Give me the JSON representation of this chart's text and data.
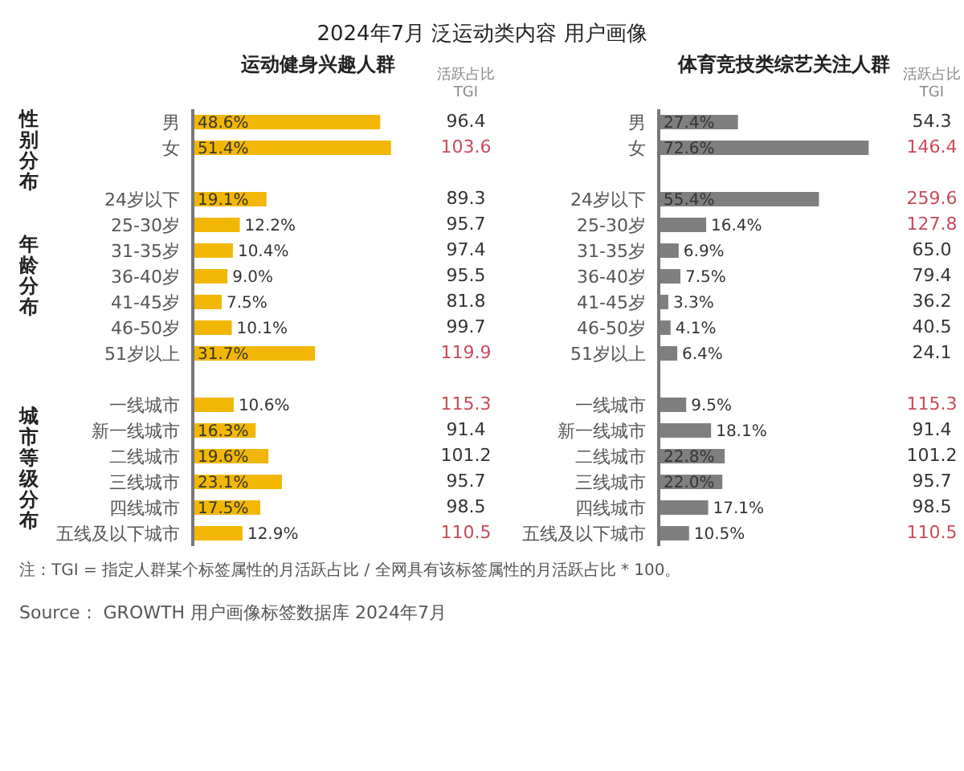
{
  "chart_data": [
    {
      "type": "bar",
      "orientation": "horizontal",
      "title": "2024年7月 泛运动类内容 用户画像",
      "subtitle": "运动健身兴趣人群",
      "tick_labels": "y",
      "categories": [
        "男",
        "女",
        null,
        "24岁以下",
        "25-30岁",
        "31-35岁",
        "36-40岁",
        "41-45岁",
        "46-50岁",
        "51岁以上",
        null,
        "一线城市",
        "新一线城市",
        "二线城市",
        "三线城市",
        "四线城市",
        "五线及以下城市"
      ],
      "series": [
        {
          "color": "#f2b705",
          "values": [
            48.6,
            51.4,
            null,
            19.1,
            12.2,
            10.4,
            9.0,
            7.5,
            10.1,
            31.7,
            null,
            10.6,
            16.3,
            19.6,
            23.1,
            17.5,
            12.9
          ],
          "value_labels": [
            "48.6%",
            "51.4%",
            null,
            "19.1%",
            "12.2%",
            "10.4%",
            "9.0%",
            "7.5%",
            "10.1%",
            "31.7%",
            null,
            "10.6%",
            "16.3%",
            "19.6%",
            "23.1%",
            "17.5%",
            "12.9%"
          ]
        }
      ],
      "annotations": [
        "性别分布",
        "年龄分布",
        "城市等级分布",
        "注：TGI = 指定人群某个标签属性的月活跃占比 / 全网具有该标签属性的月活跃占比 * 100。",
        "Source： GROWTH 用户画像标签数据库 2024年7月"
      ]
    },
    {
      "type": "other",
      "title": "活跃占比 TGI",
      "categories": [
        null,
        null,
        null,
        null,
        null,
        null,
        null,
        null,
        null,
        null,
        null,
        null,
        null,
        null,
        null,
        null,
        null
      ],
      "values": [
        96.4,
        103.6,
        null,
        89.3,
        95.7,
        97.4,
        95.5,
        81.8,
        99.7,
        119.9,
        null,
        115.3,
        91.4,
        101.2,
        95.7,
        98.5,
        110.5
      ],
      "value_labels": [
        "96.4",
        "103.6",
        null,
        "89.3",
        "95.7",
        "97.4",
        "95.5",
        "81.8",
        "99.7",
        "119.9",
        null,
        "115.3",
        "91.4",
        "101.2",
        "95.7",
        "98.5",
        "110.5"
      ],
      "colors": [
        "#333333",
        "#c84b5a",
        null,
        "#333333",
        "#333333",
        "#333333",
        "#333333",
        "#333333",
        "#333333",
        "#c84b5a",
        null,
        "#c84b5a",
        "#333333",
        "#333333",
        "#333333",
        "#333333",
        "#c84b5a"
      ]
    },
    {
      "type": "bar",
      "orientation": "horizontal",
      "subtitle": "体育竞技类综艺关注人群",
      "tick_labels": "y",
      "categories": [
        "男",
        "女",
        null,
        "24岁以下",
        "25-30岁",
        "31-35岁",
        "36-40岁",
        "41-45岁",
        "46-50岁",
        "51岁以上",
        null,
        "一线城市",
        "新一线城市",
        "二线城市",
        "三线城市",
        "四线城市",
        "五线及以下城市"
      ],
      "series": [
        {
          "color": "#7f7f7f",
          "values": [
            27.4,
            72.6,
            null,
            55.4,
            16.4,
            6.9,
            7.5,
            3.3,
            4.1,
            6.4,
            null,
            9.5,
            18.1,
            22.8,
            22.0,
            17.1,
            10.5
          ],
          "value_labels": [
            "27.4%",
            "72.6%",
            null,
            "55.4%",
            "16.4%",
            "6.9%",
            "7.5%",
            "3.3%",
            "4.1%",
            "6.4%",
            null,
            "9.5%",
            "18.1%",
            "22.8%",
            "22.0%",
            "17.1%",
            "10.5%"
          ]
        }
      ]
    },
    {
      "type": "other",
      "title": "活跃占比 TGI",
      "categories": [
        null,
        null,
        null,
        null,
        null,
        null,
        null,
        null,
        null,
        null,
        null,
        null,
        null,
        null,
        null,
        null,
        null
      ],
      "values": [
        54.3,
        146.4,
        null,
        259.6,
        127.8,
        65.0,
        79.4,
        36.2,
        40.5,
        24.1,
        null,
        115.3,
        91.4,
        101.2,
        95.7,
        98.5,
        110.5
      ],
      "value_labels": [
        "54.3",
        "146.4",
        null,
        "259.6",
        "127.8",
        "65.0",
        "79.4",
        "36.2",
        "40.5",
        "24.1",
        null,
        "115.3",
        "91.4",
        "101.2",
        "95.7",
        "98.5",
        "110.5"
      ],
      "colors": [
        "#333333",
        "#c84b5a",
        null,
        "#c84b5a",
        "#c84b5a",
        "#333333",
        "#333333",
        "#333333",
        "#333333",
        "#333333",
        null,
        "#c84b5a",
        "#333333",
        "#333333",
        "#333333",
        "#333333",
        "#c84b5a"
      ]
    }
  ]
}
